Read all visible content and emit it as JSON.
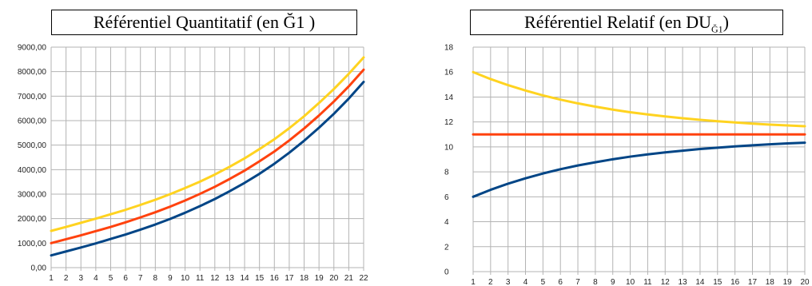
{
  "chart_data": [
    {
      "type": "line",
      "title": "Référentiel Quantitatif (en Ğ1 )",
      "x": [
        1,
        2,
        3,
        4,
        5,
        6,
        7,
        8,
        9,
        10,
        11,
        12,
        13,
        14,
        15,
        16,
        17,
        18,
        19,
        20,
        21,
        22
      ],
      "x_tick_labels": [
        "1",
        "2",
        "3",
        "4",
        "5",
        "6",
        "7",
        "8",
        "9",
        "10",
        "11",
        "12",
        "13",
        "14",
        "15",
        "16",
        "17",
        "18",
        "19",
        "20",
        "21",
        "22"
      ],
      "y_tick_labels": [
        "0,00",
        "1000,00",
        "2000,00",
        "3000,00",
        "4000,00",
        "5000,00",
        "6000,00",
        "7000,00",
        "8000,00",
        "9000,00"
      ],
      "ylim": [
        0,
        9000
      ],
      "grid": true,
      "series": [
        {
          "color": "#FFD320",
          "values": [
            1500,
            1660,
            1830,
            2000,
            2180,
            2360,
            2560,
            2770,
            3000,
            3250,
            3510,
            3800,
            4120,
            4460,
            4840,
            5240,
            5690,
            6180,
            6720,
            7290,
            7910,
            8580
          ]
        },
        {
          "color": "#FF420E",
          "values": [
            1000,
            1160,
            1320,
            1490,
            1660,
            1850,
            2050,
            2260,
            2490,
            2740,
            3010,
            3300,
            3620,
            3960,
            4340,
            4740,
            5190,
            5680,
            6210,
            6780,
            7400,
            8080
          ]
        },
        {
          "color": "#004586",
          "values": [
            500,
            660,
            820,
            990,
            1170,
            1350,
            1550,
            1760,
            1990,
            2240,
            2510,
            2800,
            3120,
            3460,
            3830,
            4240,
            4690,
            5180,
            5710,
            6280,
            6900,
            7580
          ]
        }
      ]
    },
    {
      "type": "line",
      "title": "Référentiel Relatif  (en DU",
      "title_sub": "Ğ1",
      "title_end": ")",
      "x": [
        1,
        2,
        3,
        4,
        5,
        6,
        7,
        8,
        9,
        10,
        11,
        12,
        13,
        14,
        15,
        16,
        17,
        18,
        19,
        20
      ],
      "x_tick_labels": [
        "1",
        "2",
        "3",
        "4",
        "5",
        "6",
        "7",
        "8",
        "9",
        "10",
        "11",
        "12",
        "13",
        "14",
        "15",
        "16",
        "17",
        "18",
        "19",
        "20"
      ],
      "y_tick_labels": [
        "0",
        "2",
        "4",
        "6",
        "8",
        "10",
        "12",
        "14",
        "16",
        "18"
      ],
      "ylim": [
        0,
        18
      ],
      "grid": true,
      "series": [
        {
          "color": "#FFD320",
          "values": [
            16.0,
            15.44,
            14.95,
            14.52,
            14.13,
            13.79,
            13.49,
            13.23,
            12.99,
            12.78,
            12.6,
            12.44,
            12.3,
            12.17,
            12.06,
            11.96,
            11.87,
            11.79,
            11.72,
            11.66
          ]
        },
        {
          "color": "#FF420E",
          "values": [
            11,
            11,
            11,
            11,
            11,
            11,
            11,
            11,
            11,
            11,
            11,
            11,
            11,
            11,
            11,
            11,
            11,
            11,
            11,
            11
          ]
        },
        {
          "color": "#004586",
          "values": [
            6.0,
            6.56,
            7.05,
            7.48,
            7.87,
            8.21,
            8.51,
            8.77,
            9.01,
            9.22,
            9.4,
            9.56,
            9.7,
            9.83,
            9.94,
            10.04,
            10.13,
            10.21,
            10.28,
            10.34
          ]
        }
      ]
    }
  ]
}
